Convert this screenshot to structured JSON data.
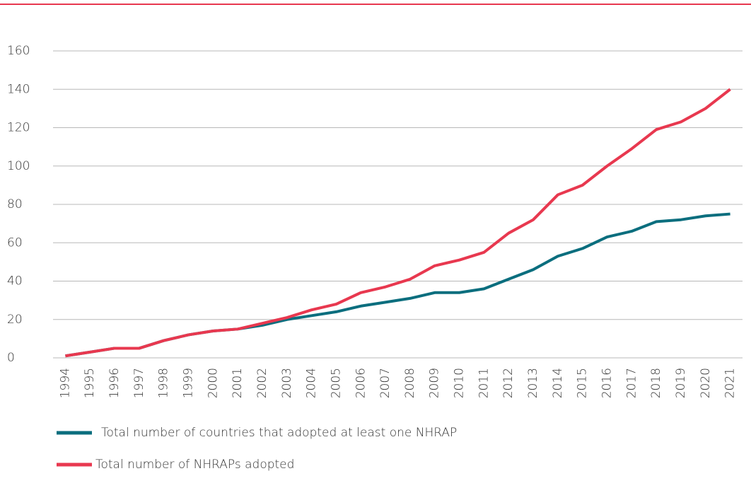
{
  "chart_data": {
    "type": "line",
    "categories": [
      "1994",
      "1995",
      "1996",
      "1997",
      "1998",
      "1999",
      "2000",
      "2001",
      "2002",
      "2003",
      "2004",
      "2005",
      "2006",
      "2007",
      "2008",
      "2009",
      "2010",
      "2011",
      "2012",
      "2013",
      "2014",
      "2015",
      "2016",
      "2017",
      "2018",
      "2019",
      "2020",
      "2021"
    ],
    "series": [
      {
        "name": "Total number of countries that adopted at least one NHRAP",
        "color": "#0b6e7e",
        "values": [
          1,
          3,
          5,
          5,
          9,
          12,
          14,
          15,
          17,
          20,
          22,
          24,
          27,
          29,
          31,
          34,
          34,
          36,
          41,
          46,
          53,
          57,
          63,
          66,
          71,
          72,
          74,
          75
        ]
      },
      {
        "name": "Total number of NHRAPs adopted",
        "color": "#e8384f",
        "values": [
          1,
          3,
          5,
          5,
          9,
          12,
          14,
          15,
          18,
          21,
          25,
          28,
          34,
          37,
          41,
          48,
          51,
          55,
          65,
          72,
          85,
          90,
          100,
          109,
          119,
          123,
          130,
          140
        ]
      }
    ],
    "ylim": [
      0,
      160
    ],
    "yticks": [
      0,
      20,
      40,
      60,
      80,
      100,
      120,
      140,
      160
    ],
    "grid": true
  }
}
